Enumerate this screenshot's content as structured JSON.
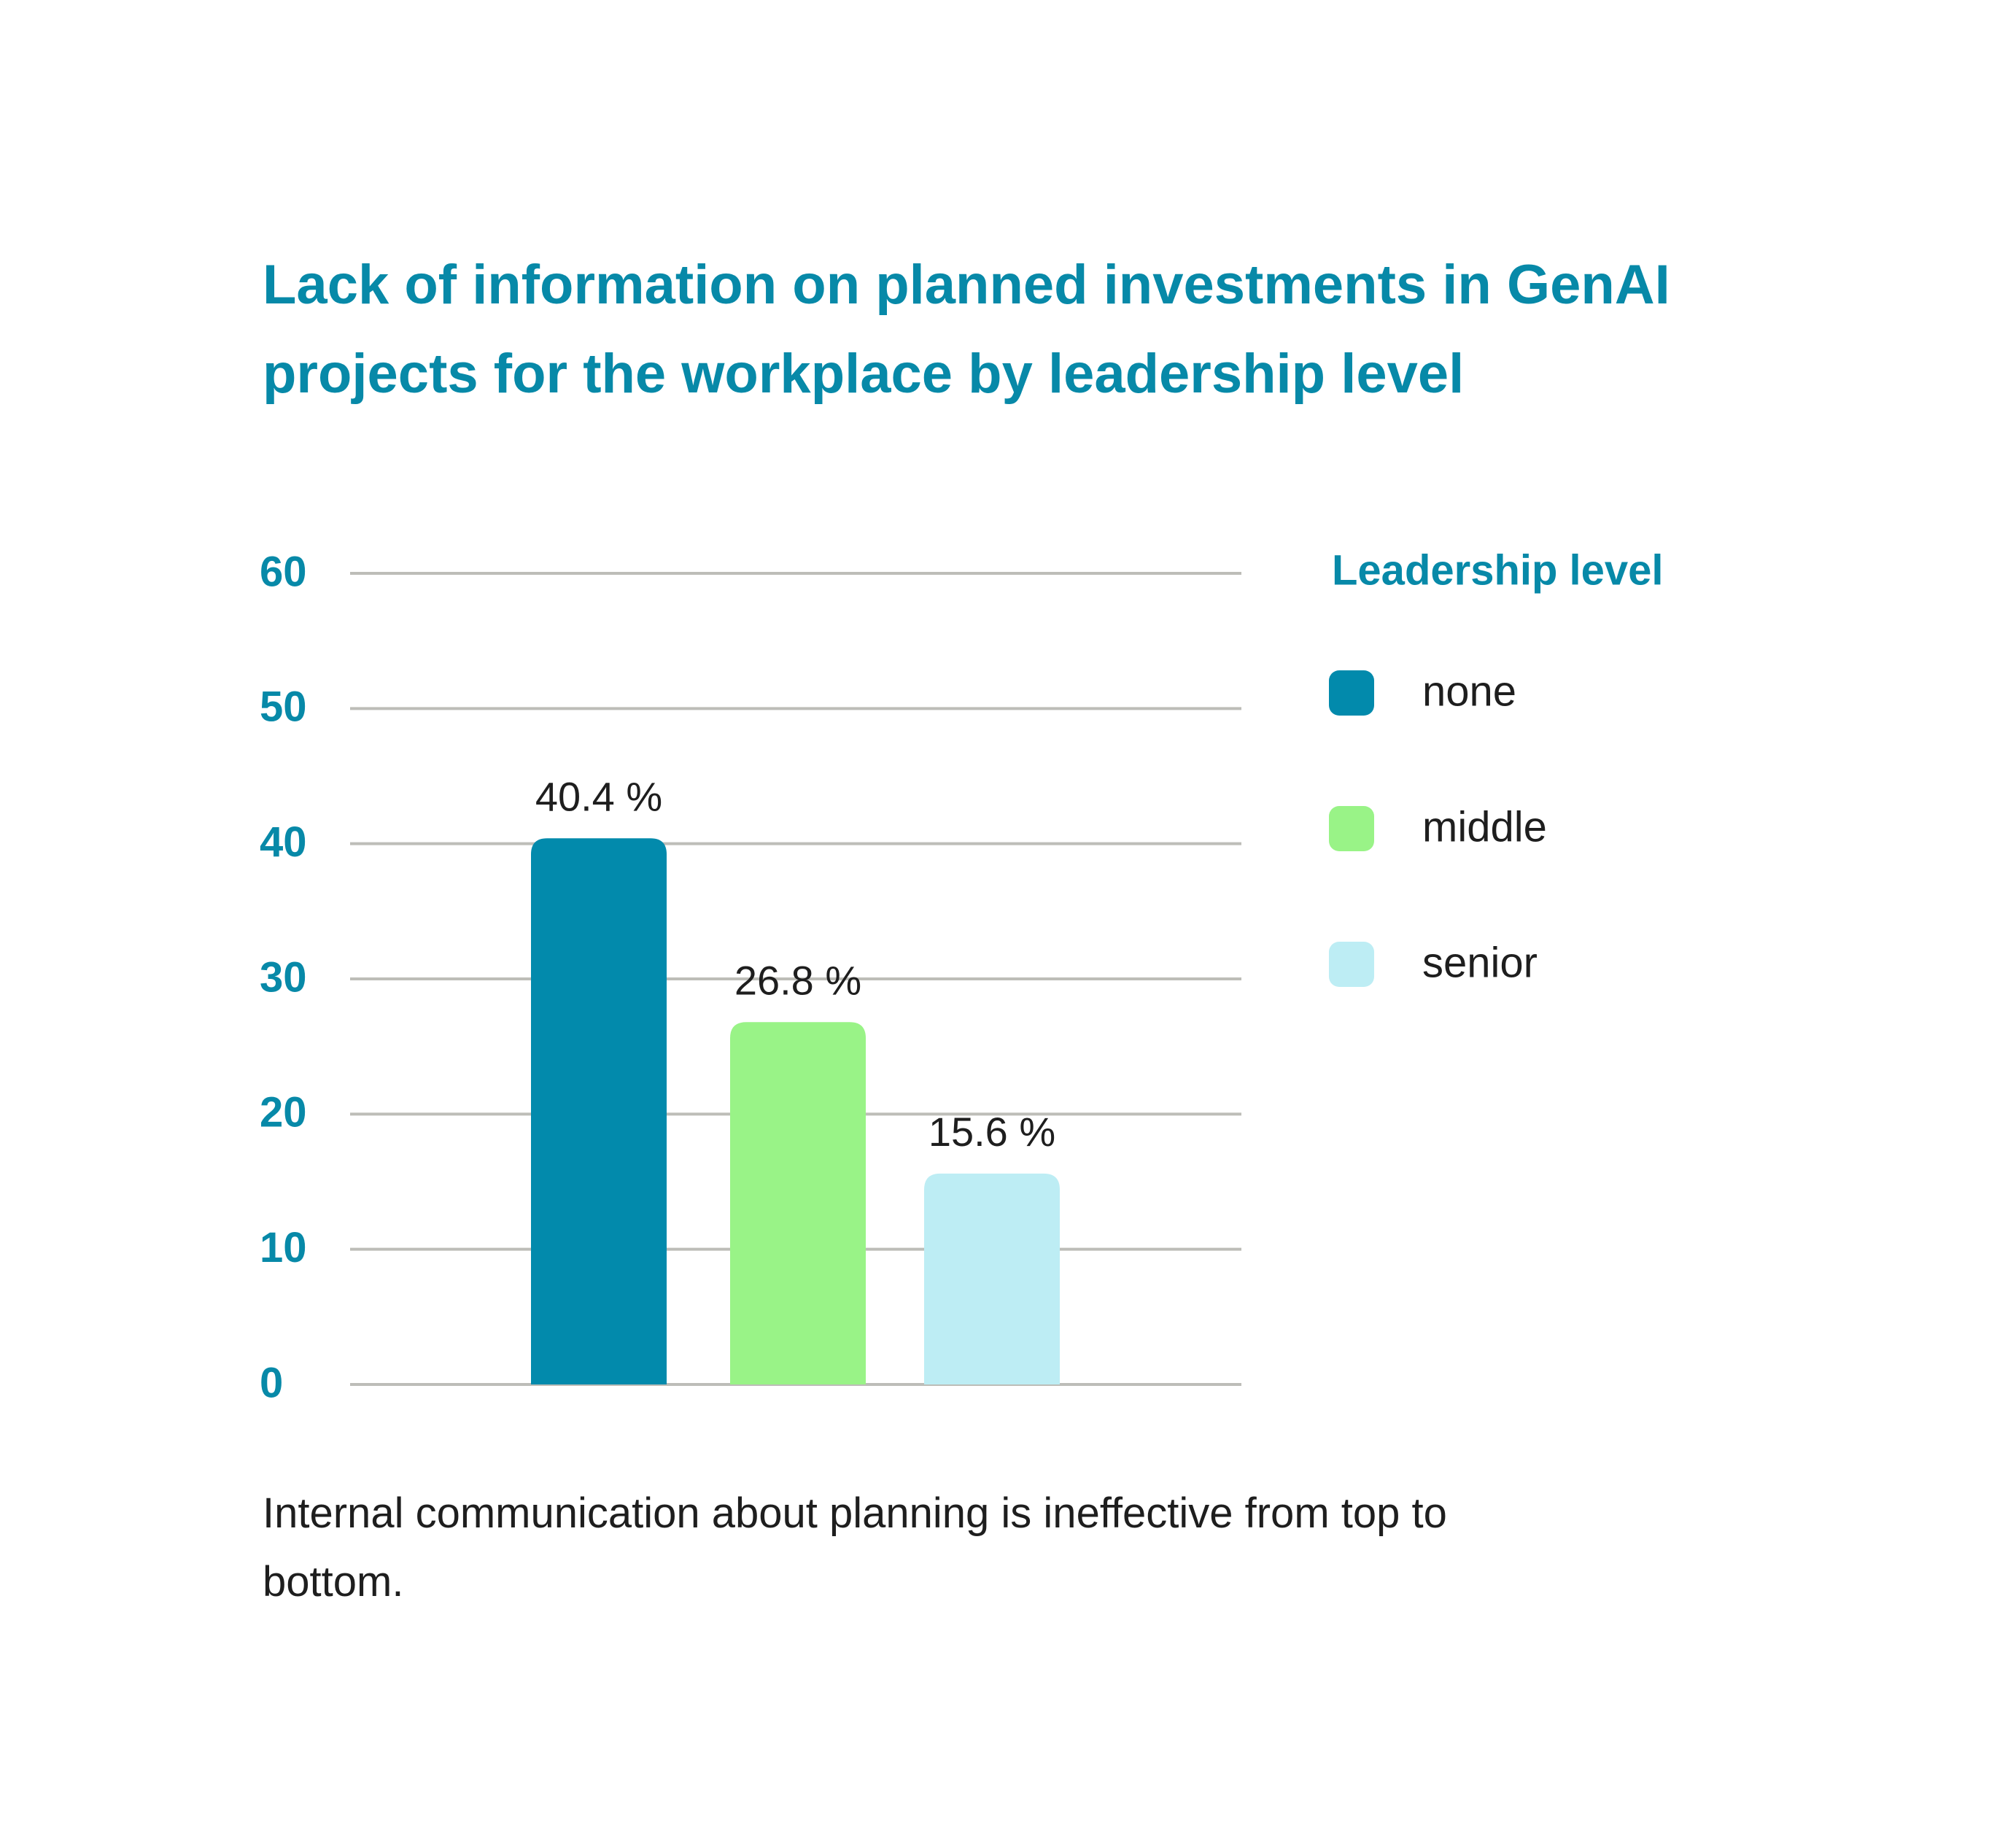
{
  "chart_data": {
    "type": "bar",
    "title": "Lack of information on planned investments in GenAI projects for the workplace by leadership level",
    "xlabel": "",
    "ylabel": "",
    "ylim": [
      0,
      60
    ],
    "yticks": [
      "0",
      "10",
      "20",
      "30",
      "40",
      "50",
      "60"
    ],
    "categories": [
      "none",
      "middle",
      "senior"
    ],
    "values": [
      40.4,
      26.8,
      15.6
    ],
    "value_labels": [
      "40.4 %",
      "26.8 %",
      "15.6 %"
    ],
    "colors": [
      "#028aac",
      "#99f387",
      "#bdedf4"
    ],
    "grid": true,
    "legend": {
      "title": "Leadership level",
      "position": "right",
      "entries": [
        "none",
        "middle",
        "senior"
      ]
    }
  },
  "caption": "Internal communication about planning is ineffective from top to bottom.",
  "style": {
    "accent": "#0789a8",
    "gridline": "#bdbdb8",
    "text": "#1e1e1e"
  }
}
